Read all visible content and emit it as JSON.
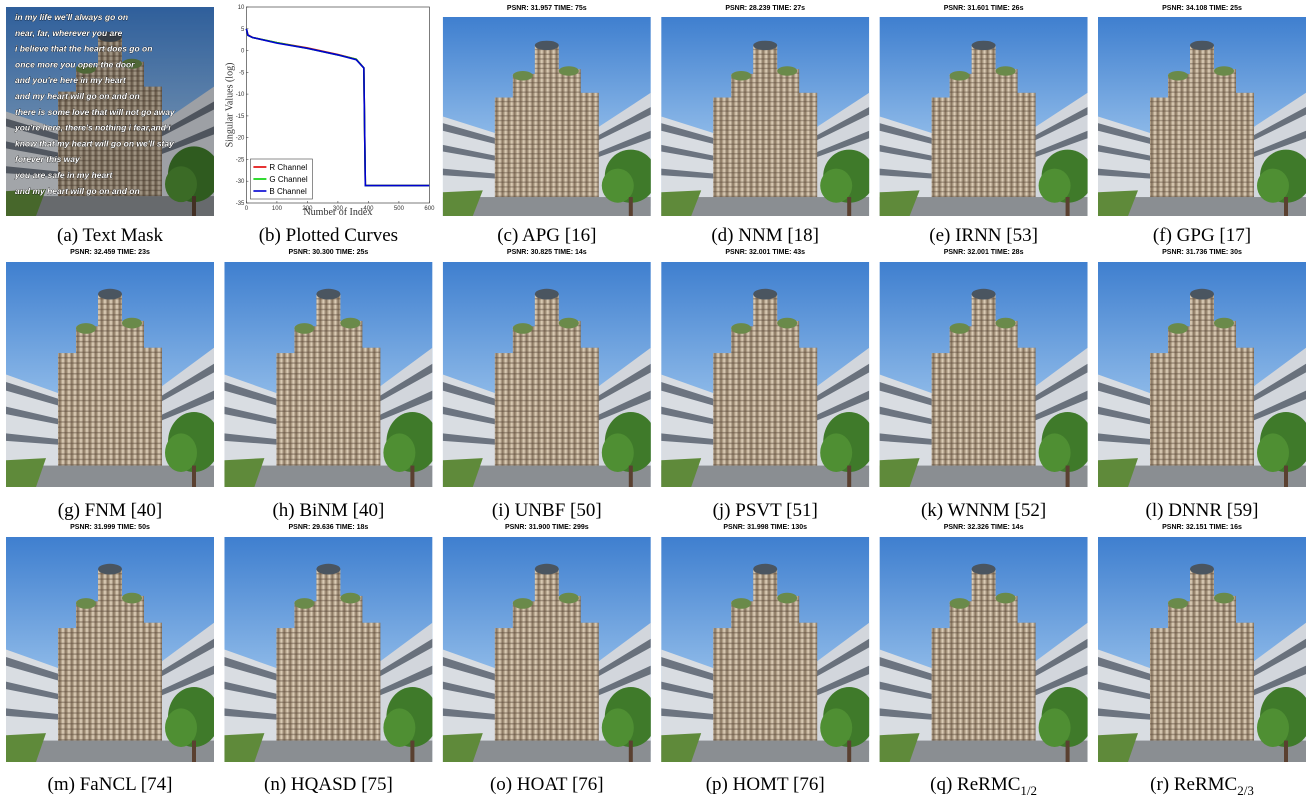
{
  "panels": [
    {
      "caption": "(a) Text Mask",
      "text_lines": [
        "in my life we'll always go on",
        "near, far, wherever you are",
        "i believe that the heart does go on",
        "once more you open the door",
        "and you're here in my heart",
        "and my heart will go on and on",
        "there is some love that will not go away",
        "you're here, there's nothing i fear,and i",
        "know that my heart will go on we'll stay",
        "forever this way",
        "you are safe in my heart",
        "and my heart will go on and on"
      ]
    },
    {
      "caption": "(b) Plotted Curves",
      "plot": {
        "type": "line",
        "xlabel": "Number of Index",
        "ylabel": "Singular Values (log)",
        "x": [
          0,
          5,
          20,
          100,
          200,
          300,
          360,
          385,
          390,
          395,
          600
        ],
        "series": [
          {
            "name": "R Channel",
            "color": "#e00000",
            "values": [
              5,
              3.6,
              3,
              1.8,
              0.6,
              -0.9,
              -2,
              -4,
              -31,
              -31,
              -31
            ]
          },
          {
            "name": "G Channel",
            "color": "#00d000",
            "values": [
              5,
              3.5,
              3,
              1.8,
              0.5,
              -1,
              -2,
              -4,
              -31,
              -31,
              -31
            ]
          },
          {
            "name": "B Channel",
            "color": "#0000d0",
            "values": [
              5,
              3.5,
              3,
              1.7,
              0.5,
              -1,
              -2.1,
              -4,
              -31,
              -31,
              -31
            ]
          }
        ],
        "xlim": [
          0,
          600
        ],
        "ylim": [
          -35,
          10
        ],
        "xticks": [
          0,
          100,
          200,
          300,
          400,
          500,
          600
        ],
        "yticks": [
          -35,
          -30,
          -25,
          -20,
          -15,
          -10,
          -5,
          0,
          5,
          10
        ],
        "legend": "lower left"
      }
    },
    {
      "caption": "(c) APG [16]",
      "title": "PSNR: 31.957 TIME: 75s"
    },
    {
      "caption": "(d) NNM [18]",
      "title": "PSNR: 28.239 TIME: 27s"
    },
    {
      "caption": "(e) IRNN [53]",
      "title": "PSNR: 31.601 TIME: 26s"
    },
    {
      "caption": "(f) GPG [17]",
      "title": "PSNR: 34.108 TIME: 25s"
    },
    {
      "caption": "(g) FNM [40]",
      "title": "PSNR: 32.459 TIME: 23s"
    },
    {
      "caption": "(h) BiNM [40]",
      "title": "PSNR: 30.300 TIME: 25s"
    },
    {
      "caption": "(i) UNBF [50]",
      "title": "PSNR: 30.825 TIME: 14s"
    },
    {
      "caption": "(j) PSVT [51]",
      "title": "PSNR: 32.001 TIME: 43s"
    },
    {
      "caption": "(k) WNNM [52]",
      "title": "PSNR: 32.001 TIME: 28s"
    },
    {
      "caption": "(l) DNNR [59]",
      "title": "PSNR: 31.736 TIME: 30s"
    },
    {
      "caption": "(m) FaNCL [74]",
      "title": "PSNR: 31.999 TIME: 50s"
    },
    {
      "caption": "(n) HQASD [75]",
      "title": "PSNR: 29.636 TIME: 18s"
    },
    {
      "caption": "(o) HOAT [76]",
      "title": "PSNR: 31.900 TIME: 299s"
    },
    {
      "caption": "(p) HOMT [76]",
      "title": "PSNR: 31.998 TIME: 130s"
    },
    {
      "caption": "(q) ReRMC",
      "caption_sub": "1/2",
      "title": "PSNR: 32.326 TIME: 14s"
    },
    {
      "caption": "(r) ReRMC",
      "caption_sub": "2/3",
      "title": "PSNR: 32.151 TIME: 16s"
    }
  ]
}
